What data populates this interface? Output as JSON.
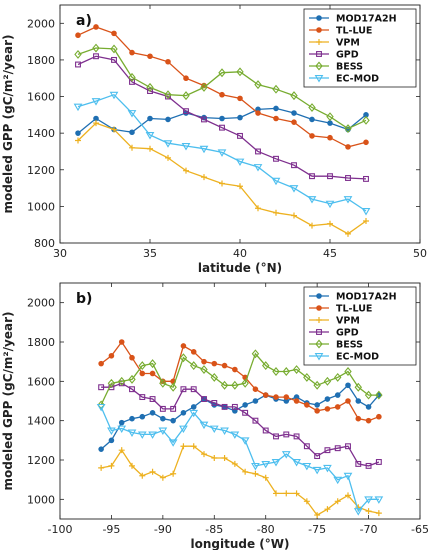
{
  "chart_data": [
    {
      "type": "line",
      "panel_label": "a)",
      "xlabel": "latitude (°N)",
      "ylabel": "modeled GPP (gC/m²/year)",
      "xlim": [
        30,
        50
      ],
      "ylim": [
        800,
        2100
      ],
      "xticks": [
        30,
        35,
        40,
        45,
        50
      ],
      "yticks": [
        800,
        1000,
        1200,
        1400,
        1600,
        1800,
        2000
      ],
      "grid": false,
      "legend_position": "top-right",
      "series": [
        {
          "name": "MOD17A2H",
          "color": "#1f6fb2",
          "marker": "circle",
          "x": [
            31,
            32,
            33,
            34,
            35,
            36,
            37,
            38,
            39,
            40,
            41,
            42,
            43,
            44,
            45,
            46,
            47
          ],
          "y": [
            1400,
            1480,
            1420,
            1405,
            1480,
            1475,
            1510,
            1485,
            1480,
            1485,
            1530,
            1535,
            1510,
            1475,
            1455,
            1420,
            1500
          ]
        },
        {
          "name": "TL-LUE",
          "color": "#d95319",
          "marker": "circle",
          "x": [
            31,
            32,
            33,
            34,
            35,
            36,
            37,
            38,
            39,
            40,
            41,
            42,
            43,
            44,
            45,
            46,
            47
          ],
          "y": [
            1935,
            1980,
            1945,
            1840,
            1820,
            1790,
            1700,
            1660,
            1610,
            1590,
            1510,
            1480,
            1460,
            1385,
            1375,
            1325,
            1350
          ]
        },
        {
          "name": "VPM",
          "color": "#edb120",
          "marker": "plus",
          "x": [
            31,
            32,
            33,
            34,
            35,
            36,
            37,
            38,
            39,
            40,
            41,
            42,
            43,
            44,
            45,
            46,
            47
          ],
          "y": [
            1360,
            1455,
            1420,
            1320,
            1315,
            1265,
            1195,
            1160,
            1125,
            1110,
            990,
            965,
            950,
            895,
            905,
            850,
            920
          ]
        },
        {
          "name": "GPD",
          "color": "#7e2f8e",
          "marker": "square",
          "x": [
            31,
            32,
            33,
            34,
            35,
            36,
            37,
            38,
            39,
            40,
            41,
            42,
            43,
            44,
            45,
            46,
            47
          ],
          "y": [
            1775,
            1820,
            1800,
            1680,
            1630,
            1600,
            1520,
            1475,
            1430,
            1385,
            1300,
            1260,
            1225,
            1165,
            1165,
            1155,
            1150
          ]
        },
        {
          "name": "BESS",
          "color": "#77ac30",
          "marker": "diamond",
          "x": [
            31,
            32,
            33,
            34,
            35,
            36,
            37,
            38,
            39,
            40,
            41,
            42,
            43,
            44,
            45,
            46,
            47
          ],
          "y": [
            1830,
            1865,
            1860,
            1705,
            1650,
            1610,
            1605,
            1650,
            1730,
            1735,
            1665,
            1640,
            1605,
            1540,
            1490,
            1425,
            1470
          ]
        },
        {
          "name": "EC-MOD",
          "color": "#4dbeee",
          "marker": "triangle-down",
          "x": [
            31,
            32,
            33,
            34,
            35,
            36,
            37,
            38,
            39,
            40,
            41,
            42,
            43,
            44,
            45,
            46,
            47
          ],
          "y": [
            1545,
            1575,
            1610,
            1510,
            1390,
            1345,
            1330,
            1315,
            1295,
            1245,
            1215,
            1140,
            1100,
            1040,
            1015,
            1040,
            975
          ]
        }
      ]
    },
    {
      "type": "line",
      "panel_label": "b)",
      "xlabel": "longitude (°W)",
      "ylabel": "modeled GPP (gC/m²/year)",
      "xlim": [
        -100,
        -65
      ],
      "ylim": [
        900,
        2100
      ],
      "xticks": [
        -100,
        -95,
        -90,
        -85,
        -80,
        -75,
        -70,
        -65
      ],
      "yticks": [
        1000,
        1200,
        1400,
        1600,
        1800,
        2000
      ],
      "grid": false,
      "legend_position": "top-right",
      "series": [
        {
          "name": "MOD17A2H",
          "color": "#1f6fb2",
          "marker": "circle",
          "x": [
            -96,
            -95,
            -94,
            -93,
            -92,
            -91,
            -90,
            -89,
            -88,
            -87,
            -86,
            -85,
            -84,
            -83,
            -82,
            -81,
            -80,
            -79,
            -78,
            -77,
            -76,
            -75,
            -74,
            -73,
            -72,
            -71,
            -70,
            -69
          ],
          "y": [
            1255,
            1300,
            1390,
            1410,
            1420,
            1440,
            1410,
            1400,
            1440,
            1470,
            1510,
            1480,
            1470,
            1450,
            1480,
            1500,
            1530,
            1510,
            1500,
            1520,
            1490,
            1480,
            1510,
            1530,
            1580,
            1500,
            1470,
            1530
          ]
        },
        {
          "name": "TL-LUE",
          "color": "#d95319",
          "marker": "circle",
          "x": [
            -96,
            -95,
            -94,
            -93,
            -92,
            -91,
            -90,
            -89,
            -88,
            -87,
            -86,
            -85,
            -84,
            -83,
            -82,
            -81,
            -80,
            -79,
            -78,
            -77,
            -76,
            -75,
            -74,
            -73,
            -72,
            -71,
            -70,
            -69
          ],
          "y": [
            1690,
            1730,
            1800,
            1720,
            1640,
            1640,
            1600,
            1600,
            1780,
            1750,
            1700,
            1690,
            1680,
            1660,
            1620,
            1560,
            1530,
            1520,
            1520,
            1500,
            1480,
            1450,
            1460,
            1470,
            1500,
            1410,
            1400,
            1420
          ]
        },
        {
          "name": "VPM",
          "color": "#edb120",
          "marker": "plus",
          "x": [
            -96,
            -95,
            -94,
            -93,
            -92,
            -91,
            -90,
            -89,
            -88,
            -87,
            -86,
            -85,
            -84,
            -83,
            -82,
            -81,
            -80,
            -79,
            -78,
            -77,
            -76,
            -75,
            -74,
            -73,
            -72,
            -71,
            -70,
            -69
          ],
          "y": [
            1160,
            1170,
            1250,
            1170,
            1120,
            1140,
            1110,
            1130,
            1270,
            1270,
            1230,
            1210,
            1210,
            1180,
            1140,
            1130,
            1110,
            1030,
            1030,
            1030,
            990,
            920,
            950,
            990,
            1020,
            960,
            940,
            930
          ]
        },
        {
          "name": "GPD",
          "color": "#7e2f8e",
          "marker": "square",
          "x": [
            -96,
            -95,
            -94,
            -93,
            -92,
            -91,
            -90,
            -89,
            -88,
            -87,
            -86,
            -85,
            -84,
            -83,
            -82,
            -81,
            -80,
            -79,
            -78,
            -77,
            -76,
            -75,
            -74,
            -73,
            -72,
            -71,
            -70,
            -69
          ],
          "y": [
            1570,
            1570,
            1590,
            1560,
            1520,
            1510,
            1460,
            1460,
            1560,
            1560,
            1510,
            1490,
            1470,
            1470,
            1440,
            1400,
            1350,
            1320,
            1330,
            1320,
            1270,
            1220,
            1250,
            1260,
            1270,
            1180,
            1170,
            1190
          ]
        },
        {
          "name": "BESS",
          "color": "#77ac30",
          "marker": "diamond",
          "x": [
            -96,
            -95,
            -94,
            -93,
            -92,
            -91,
            -90,
            -89,
            -88,
            -87,
            -86,
            -85,
            -84,
            -83,
            -82,
            -81,
            -80,
            -79,
            -78,
            -77,
            -76,
            -75,
            -74,
            -73,
            -72,
            -71,
            -70,
            -69
          ],
          "y": [
            1480,
            1590,
            1600,
            1610,
            1680,
            1690,
            1590,
            1570,
            1720,
            1680,
            1660,
            1620,
            1580,
            1580,
            1590,
            1740,
            1680,
            1650,
            1650,
            1660,
            1620,
            1580,
            1600,
            1620,
            1650,
            1570,
            1530,
            1530
          ]
        },
        {
          "name": "EC-MOD",
          "color": "#4dbeee",
          "marker": "triangle-down",
          "x": [
            -96,
            -95,
            -94,
            -93,
            -92,
            -91,
            -90,
            -89,
            -88,
            -87,
            -86,
            -85,
            -84,
            -83,
            -82,
            -81,
            -80,
            -79,
            -78,
            -77,
            -76,
            -75,
            -74,
            -73,
            -72,
            -71,
            -70,
            -69
          ],
          "y": [
            1470,
            1350,
            1360,
            1340,
            1330,
            1330,
            1350,
            1290,
            1360,
            1440,
            1380,
            1360,
            1350,
            1330,
            1300,
            1170,
            1180,
            1190,
            1230,
            1190,
            1170,
            1150,
            1160,
            1100,
            1120,
            940,
            1000,
            1000
          ]
        }
      ]
    }
  ]
}
